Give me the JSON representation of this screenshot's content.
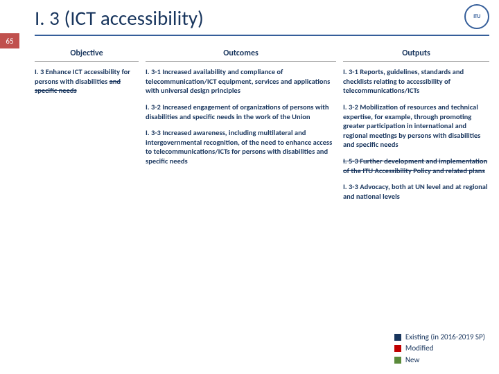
{
  "slide_number": "65",
  "title": "I. 3 (ICT accessibility)",
  "logo_text": "ITU",
  "headers": {
    "objective": "Objective",
    "outcomes": "Outcomes",
    "outputs": "Outputs"
  },
  "objective": {
    "text": "I. 3 Enhance ICT accessibility for persons with disabilities ",
    "strike": "and specific needs"
  },
  "outcomes": {
    "o1": "I. 3-1 Increased availability and compliance of telecommunication/ICT equipment, services and applications with universal design principles",
    "o2": "I. 3-2 Increased engagement of organizations of persons with disabilities and specific needs in the work of the Union",
    "o3": "I. 3-3 Increased awareness, including multilateral and intergovernmental recognition, of the need to enhance access to telecommunications/ICTs for persons with disabilities and specific needs"
  },
  "outputs": {
    "p1": "I. 3-1 Reports, guidelines, standards and checklists relating to accessibility of telecommunications/ICTs",
    "p2": "I. 3-2 Mobilization of resources and technical expertise, for example, through promoting greater participation in international and regional meetings by persons with disabilities and specific needs",
    "p3_strike": "I. 5-3 Further development and implementation of the ITU Accessibility Policy and related plans",
    "p4": "I. 3-3 Advocacy, both at UN level and at regional and national levels"
  },
  "legend": {
    "existing": {
      "label": "Existing (in 2016-2019 SP)",
      "color": "#18355d"
    },
    "modified": {
      "label": "Modified",
      "color": "#c00000"
    },
    "new": {
      "label": "New",
      "color": "#5a8a3a"
    }
  }
}
